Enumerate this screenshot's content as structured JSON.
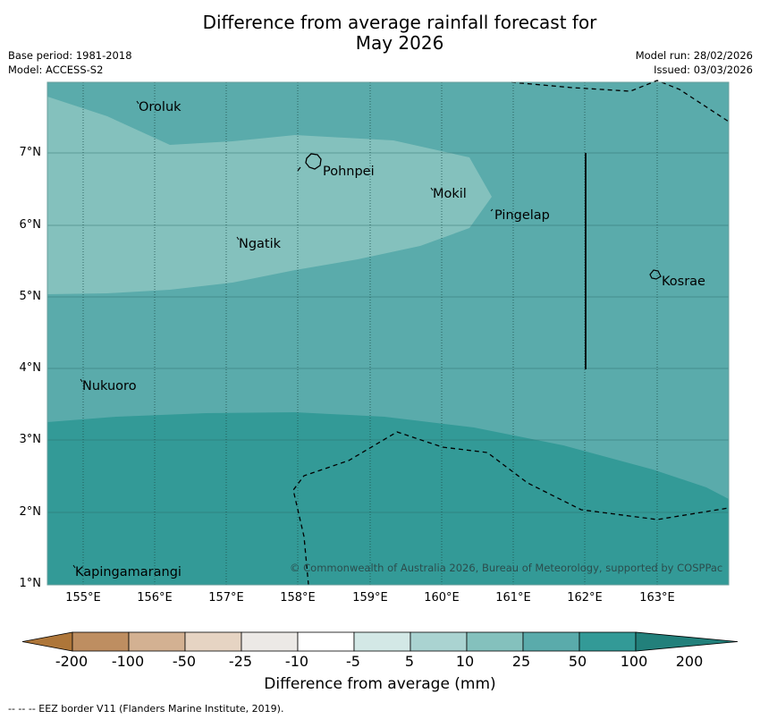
{
  "header": {
    "title_line1": "Difference from average rainfall forecast for",
    "title_line2": "May 2026",
    "base_period": "Base period: 1981-2018",
    "model": "Model: ACCESS-S2",
    "model_run": "Model run: 28/02/2026",
    "issued": "Issued: 03/03/2026"
  },
  "map": {
    "lat_ticks": [
      "7°N",
      "6°N",
      "5°N",
      "4°N",
      "3°N",
      "2°N",
      "1°N"
    ],
    "lon_ticks": [
      "155°E",
      "156°E",
      "157°E",
      "158°E",
      "159°E",
      "160°E",
      "161°E",
      "162°E",
      "163°E"
    ],
    "places": [
      "Oroluk",
      "Pohnpei",
      "Mokil",
      "Pingelap",
      "Ngatik",
      "Kosrae",
      "Nukuoro",
      "Kapingamarangi"
    ],
    "copyright": "© Commonwealth of Australia 2026, Bureau of Meteorology, supported by COSPPac",
    "colors": {
      "band_10_25": "#84c1bd",
      "band_25_50": "#5aabab",
      "band_50_100": "#339a97"
    }
  },
  "colorbar": {
    "labels": [
      "-200",
      "-100",
      "-50",
      "-25",
      "-10",
      "-5",
      "5",
      "10",
      "25",
      "50",
      "100",
      "200"
    ],
    "colors": [
      "#ae7639",
      "#be8e61",
      "#d3b192",
      "#e6d4c3",
      "#ece9e6",
      "#ffffff",
      "#d3e8e6",
      "#aad3d1",
      "#84c1bd",
      "#5aabab",
      "#339a97",
      "#22807b"
    ],
    "title": "Difference from average (mm)"
  },
  "footer": {
    "eez_note": "--  --  -- EEZ border V11 (Flanders Marine Institute, 2019)."
  }
}
